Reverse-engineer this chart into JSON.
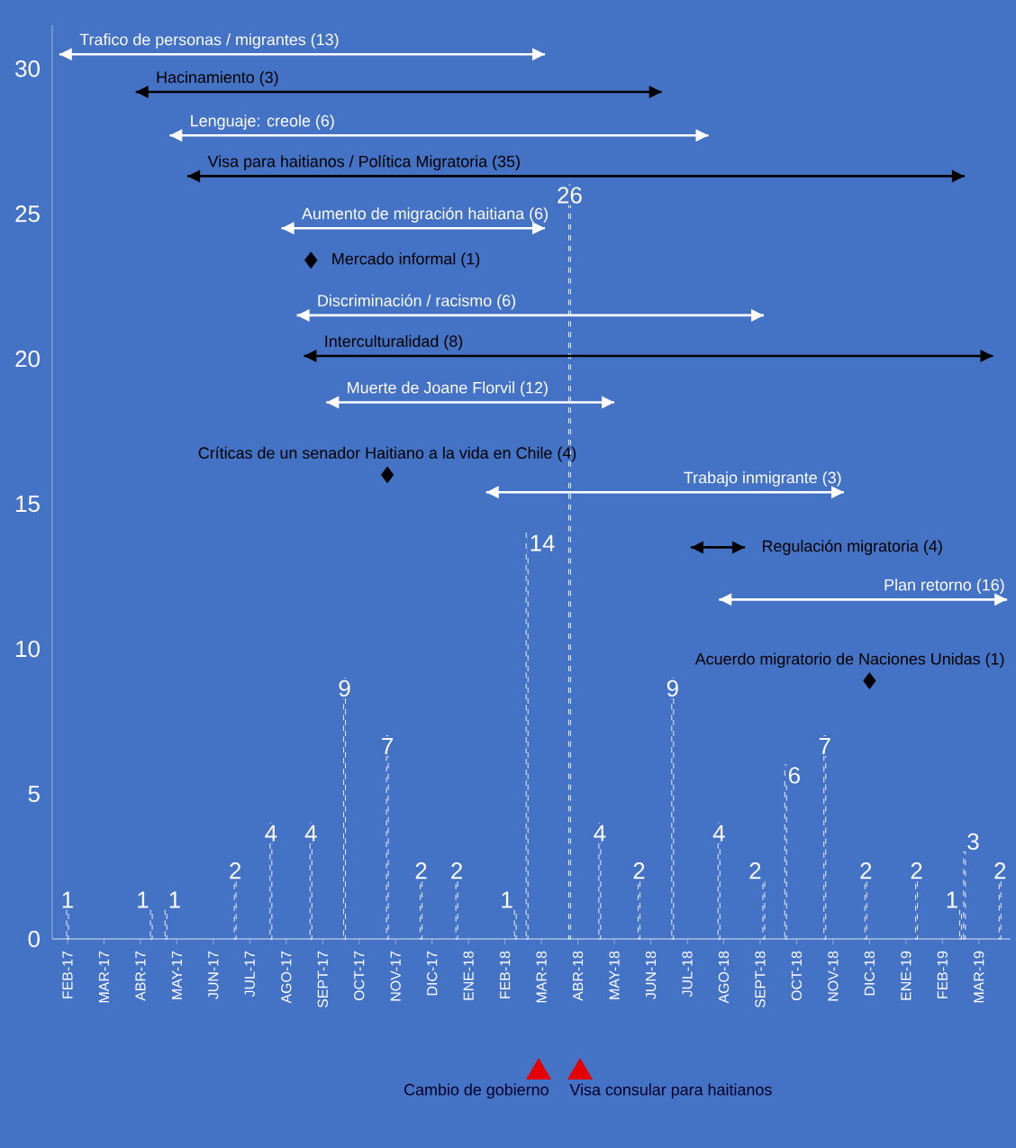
{
  "chart_data": {
    "type": "bar",
    "xlim": [
      "2017-01-19",
      "2019-03-28"
    ],
    "ylim": [
      0,
      31.5
    ],
    "xticks": [
      {
        "value": "2017-02",
        "label": "FEB-17"
      },
      {
        "value": "2017-03",
        "label": "MAR-17"
      },
      {
        "value": "2017-04",
        "label": "ABR-17"
      },
      {
        "value": "2017-05",
        "label": "MAY-17"
      },
      {
        "value": "2017-06",
        "label": "JUN-17"
      },
      {
        "value": "2017-07",
        "label": "JUL-17"
      },
      {
        "value": "2017-08",
        "label": "AGO-17"
      },
      {
        "value": "2017-09",
        "label": "SEPT-17"
      },
      {
        "value": "2017-10",
        "label": "OCT-17"
      },
      {
        "value": "2017-11",
        "label": "NOV-17"
      },
      {
        "value": "2017-12",
        "label": "DIC-17"
      },
      {
        "value": "2018-01",
        "label": "ENE-18"
      },
      {
        "value": "2018-02",
        "label": "FEB-18"
      },
      {
        "value": "2018-03",
        "label": "MAR-18"
      },
      {
        "value": "2018-04",
        "label": "ABR-18"
      },
      {
        "value": "2018-05",
        "label": "MAY-18"
      },
      {
        "value": "2018-06",
        "label": "JUN-18"
      },
      {
        "value": "2018-07",
        "label": "JUL-18"
      },
      {
        "value": "2018-08",
        "label": "AGO-18"
      },
      {
        "value": "2018-09",
        "label": "SEPT-18"
      },
      {
        "value": "2018-10",
        "label": "OCT-18"
      },
      {
        "value": "2018-11",
        "label": "NOV-18"
      },
      {
        "value": "2018-12",
        "label": "DIC-18"
      },
      {
        "value": "2019-01",
        "label": "ENE-19"
      },
      {
        "value": "2019-02",
        "label": "FEB-19"
      },
      {
        "value": "2019-03",
        "label": "MAR-19"
      }
    ],
    "yticks": [
      0,
      5,
      10,
      15,
      20,
      25,
      30
    ],
    "series": [
      {
        "color": "#ffffff",
        "line_style": "dashed",
        "x": [
          "2017-02-01",
          "2017-04-10",
          "2017-04-22",
          "2017-06-19",
          "2017-07-19",
          "2017-08-22",
          "2017-09-19",
          "2017-10-25",
          "2017-11-22",
          "2017-12-22",
          "2018-02-09",
          "2018-02-18",
          "2018-03-25",
          "2018-04-19",
          "2018-05-22",
          "2018-06-19",
          "2018-07-28",
          "2018-09-04",
          "2018-09-22",
          "2018-10-25",
          "2018-11-28",
          "2019-01-10",
          "2019-02-15",
          "2019-02-18",
          "2019-03-19"
        ],
        "values": [
          1,
          1,
          1,
          2,
          4,
          4,
          9,
          7,
          2,
          2,
          1,
          14,
          26,
          4,
          2,
          9,
          4,
          2,
          6,
          7,
          2,
          2,
          1,
          3,
          2
        ],
        "value_labels": [
          "1",
          "1",
          "1",
          "2",
          "4",
          "4",
          "9",
          "7",
          "2",
          "2",
          "1",
          "14",
          "26",
          "4",
          "2",
          "9",
          "4",
          "2",
          "6",
          "7",
          "2",
          "2",
          "1",
          "3",
          "2"
        ]
      },
      {
        "type": "line",
        "name": "Trafico de personas / migrantes  (13)",
        "color": "#ffffff",
        "x": [
          "2017-01-25",
          "2018-03-04"
        ],
        "values": [
          30.5,
          30.5
        ]
      },
      {
        "type": "line",
        "name": "Hacinamiento (3)",
        "color": "#000000",
        "x": [
          "2017-03-28",
          "2018-06-10"
        ],
        "values": [
          29.2,
          29.2
        ]
      },
      {
        "type": "line",
        "name": "Lenguaje: creole (6)",
        "color": "#ffffff",
        "x": [
          "2017-04-25",
          "2018-07-19"
        ],
        "values": [
          27.7,
          27.7
        ]
      },
      {
        "type": "line",
        "name": "Visa para haitianos / Política Migratoria (35)",
        "color": "#000000",
        "x": [
          "2017-05-10",
          "2019-02-18"
        ],
        "values": [
          26.3,
          26.3
        ]
      },
      {
        "type": "line",
        "name": "Aumento de migración haitiana (6)",
        "color": "#ffffff",
        "x": [
          "2017-07-28",
          "2018-03-04"
        ],
        "values": [
          24.5,
          24.5
        ]
      },
      {
        "type": "scatter",
        "marker": "diamond",
        "name": "Mercado informal (1)",
        "color": "#000000",
        "x": [
          "2017-08-22"
        ],
        "values": [
          23.4
        ]
      },
      {
        "type": "line",
        "name": "Discriminación / racismo (6)",
        "color": "#ffffff",
        "x": [
          "2017-08-10",
          "2018-09-04"
        ],
        "values": [
          21.5,
          21.5
        ]
      },
      {
        "type": "line",
        "name": "Interculturalidad (8)",
        "color": "#000000",
        "x": [
          "2017-08-16",
          "2019-03-13"
        ],
        "values": [
          20.1,
          20.1
        ]
      },
      {
        "type": "line",
        "name": "Muerte de Joane Florvil (12)",
        "color": "#ffffff",
        "x": [
          "2017-09-04",
          "2018-05-01"
        ],
        "values": [
          18.5,
          18.5
        ]
      },
      {
        "type": "scatter",
        "marker": "diamond",
        "name": "Críticas de un senador Haitiano a la vida en Chile (4)",
        "color": "#000000",
        "x": [
          "2017-10-25"
        ],
        "values": [
          16.0
        ]
      },
      {
        "type": "line",
        "name": "Trabajo inmigrante (3)",
        "color": "#ffffff",
        "x": [
          "2018-01-16",
          "2018-11-10"
        ],
        "values": [
          15.4,
          15.4
        ]
      },
      {
        "type": "line",
        "name": "Regulación migratoria (4)",
        "color": "#000000",
        "x": [
          "2018-07-04",
          "2018-08-19"
        ],
        "values": [
          13.5,
          13.5
        ]
      },
      {
        "type": "line",
        "name": "Plan retorno (16)",
        "color": "#ffffff",
        "x": [
          "2018-07-28",
          "2019-03-25"
        ],
        "values": [
          11.7,
          11.7
        ]
      },
      {
        "type": "scatter",
        "marker": "diamond",
        "name": "Acuerdo migratorio de Naciones Unidas (1)",
        "color": "#000000",
        "x": [
          "2018-12-01"
        ],
        "values": [
          8.9
        ]
      }
    ],
    "annotations": [
      "Cambio de gobierno",
      "Visa consular para haitianos"
    ]
  }
}
